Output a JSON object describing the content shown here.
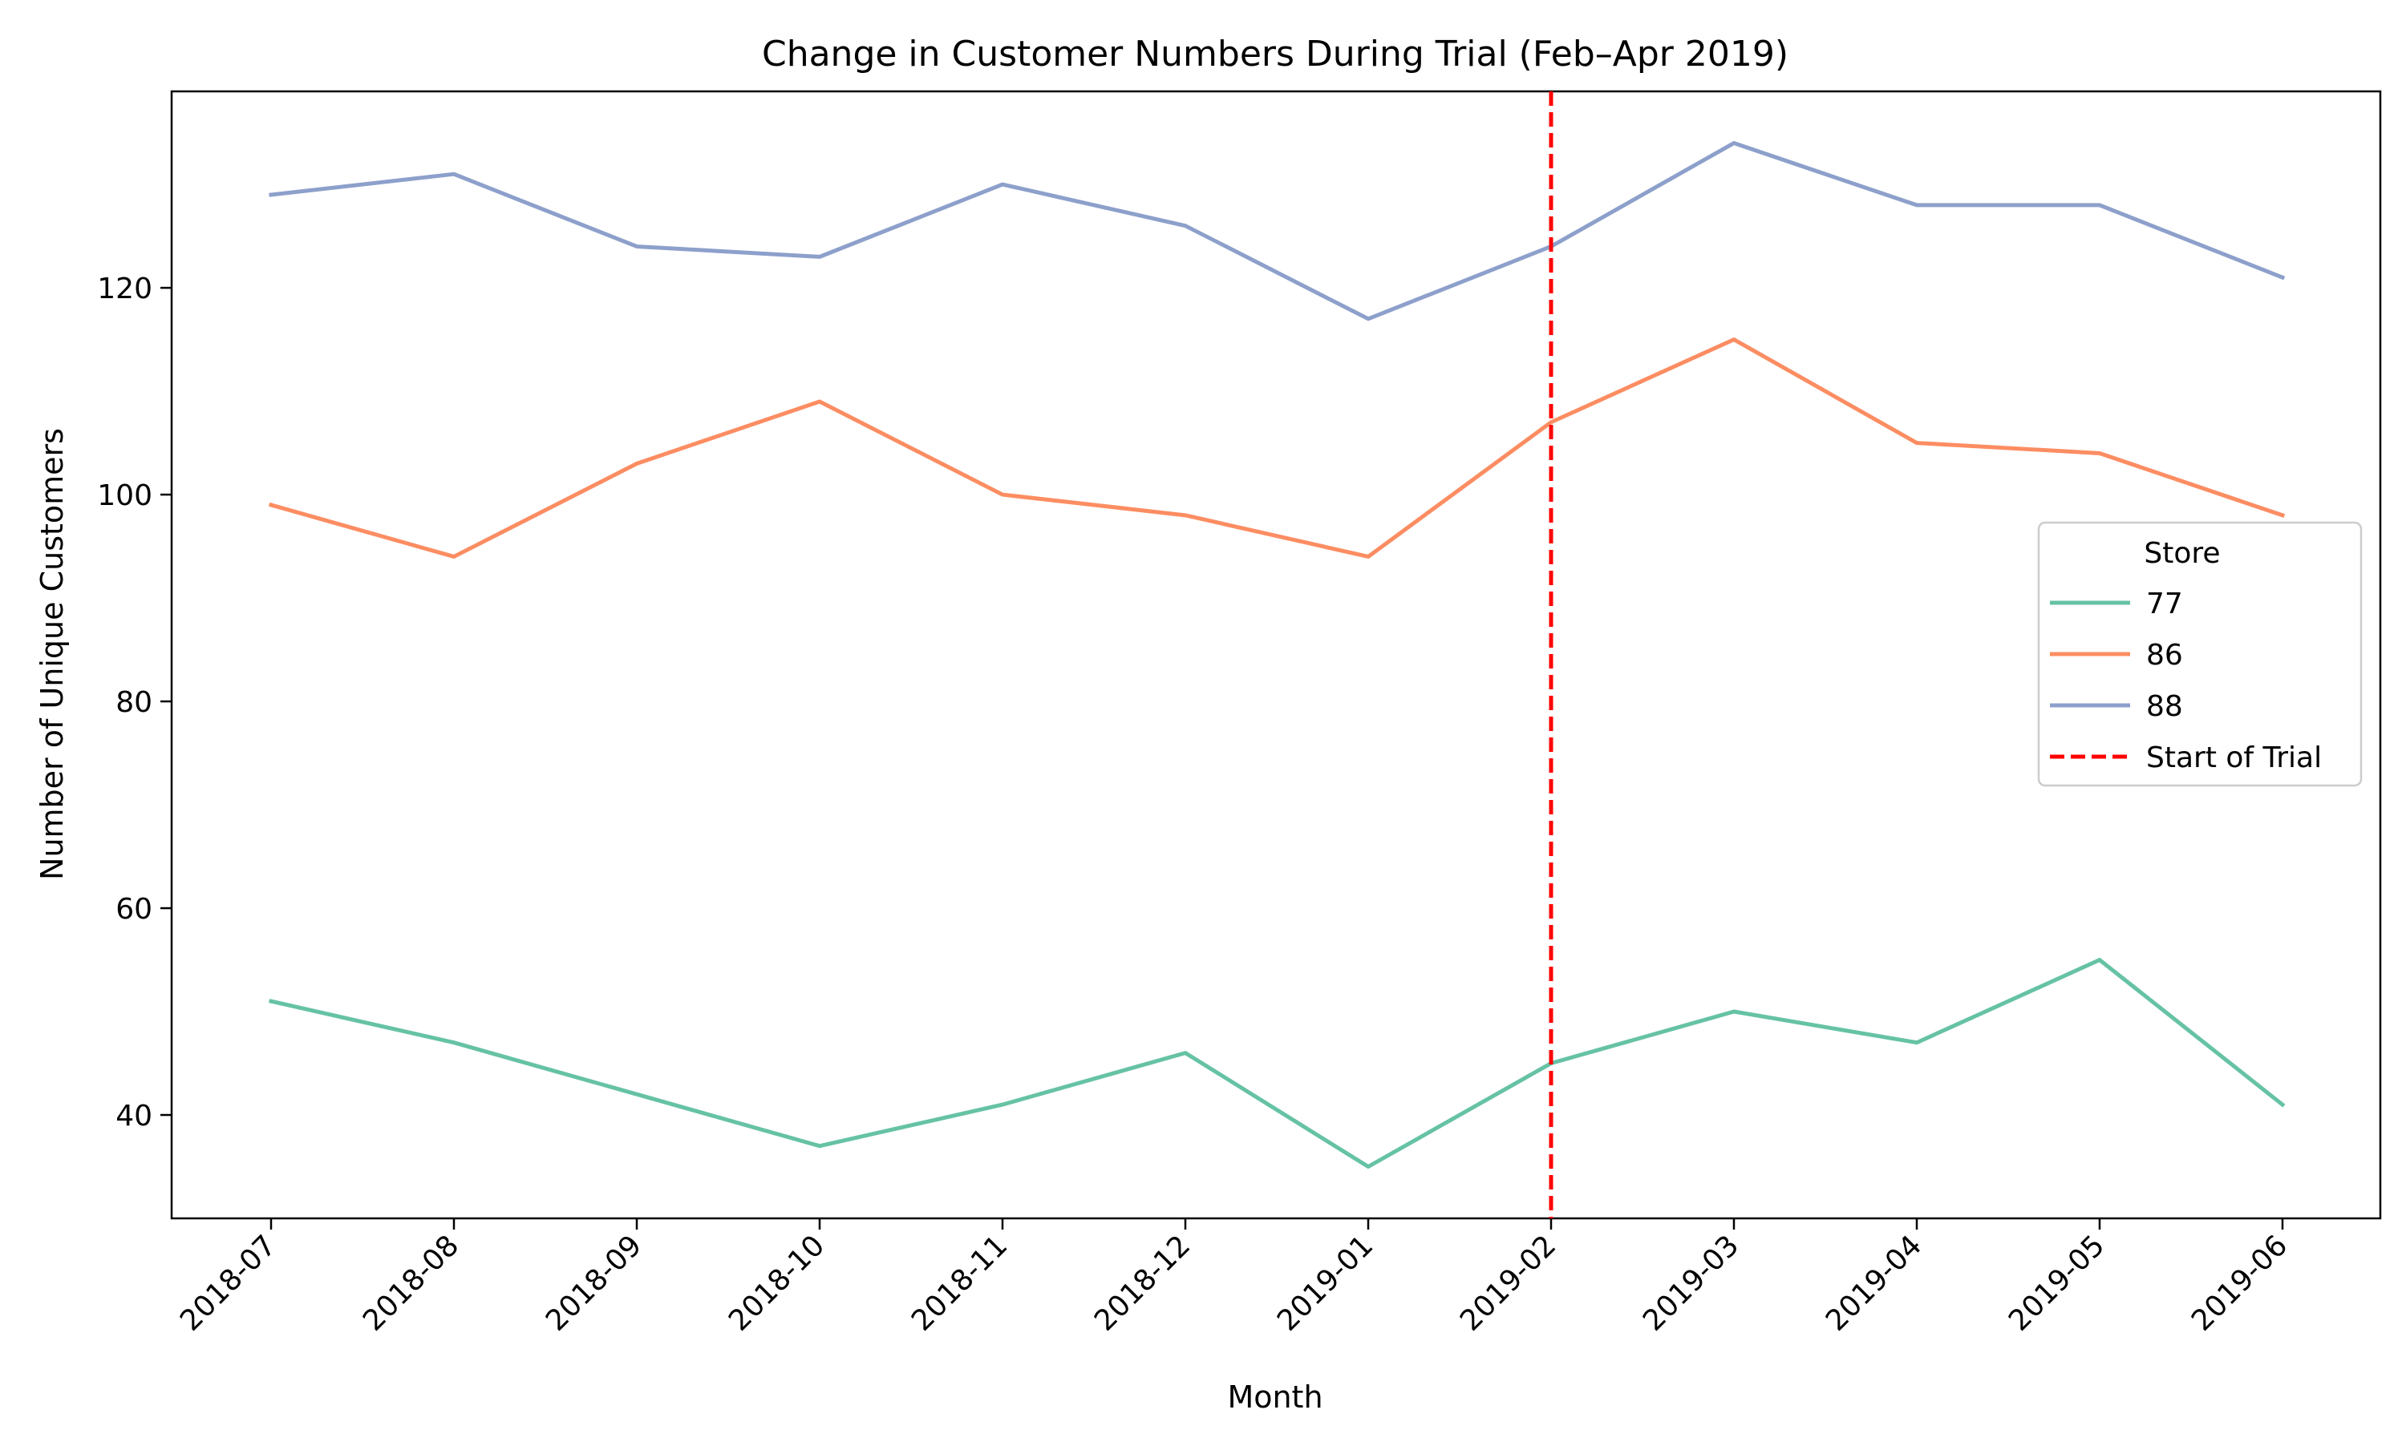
{
  "chart_data": {
    "type": "line",
    "title": "Change in Customer Numbers During Trial (Feb–Apr 2019)",
    "xlabel": "Month",
    "ylabel": "Number of Unique Customers",
    "categories": [
      "2018-07",
      "2018-08",
      "2018-09",
      "2018-10",
      "2018-11",
      "2018-12",
      "2019-01",
      "2019-02",
      "2019-03",
      "2019-04",
      "2019-05",
      "2019-06"
    ],
    "ylim": [
      30,
      139
    ],
    "yticks": [
      40,
      60,
      80,
      100,
      120
    ],
    "grid": false,
    "series": [
      {
        "name": "77",
        "color": "#66c2a5",
        "values": [
          51,
          47,
          42,
          37,
          41,
          46,
          35,
          45,
          50,
          47,
          55,
          41
        ]
      },
      {
        "name": "86",
        "color": "#fc8d62",
        "values": [
          99,
          94,
          103,
          109,
          100,
          98,
          94,
          107,
          115,
          105,
          104,
          98
        ]
      },
      {
        "name": "88",
        "color": "#8da0cb",
        "values": [
          129,
          131,
          124,
          123,
          130,
          126,
          117,
          124,
          134,
          128,
          128,
          121
        ]
      }
    ],
    "reference_line": {
      "label": "Start of Trial",
      "x": "2019-02",
      "color": "#ff0000",
      "style": "dashed"
    },
    "legend": {
      "title": "Store",
      "placement": "center-right"
    }
  }
}
